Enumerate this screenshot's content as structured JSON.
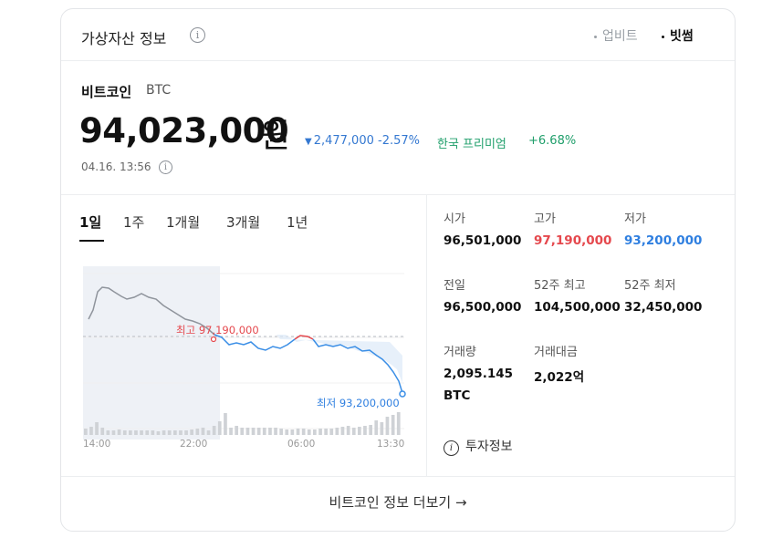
{
  "header": {
    "title": "가상자산 정보",
    "info_icon": "info-icon",
    "sources": [
      "업비트",
      "빗썸"
    ]
  },
  "coin": {
    "name": "비트코인",
    "symbol": "BTC",
    "price": "94,023,000",
    "unit": "원",
    "change": "2,477,000 -2.57%",
    "premium_label": "한국 프리미엄",
    "premium_value": "+6.68%",
    "timestamp": "04.16. 13:56"
  },
  "tabs": [
    "1일",
    "1주",
    "1개월",
    "3개월",
    "1년"
  ],
  "chart": {
    "high_label": "최고 97,190,000",
    "low_label": "최저 93,200,000",
    "x_ticks": [
      "14:00",
      "22:00",
      "06:00",
      "13:30"
    ]
  },
  "chart_data": {
    "type": "line",
    "x": [
      "14:00",
      "22:00",
      "06:00",
      "13:30"
    ],
    "high": 97190000,
    "low": 93200000,
    "close": 94023000,
    "annotations": [
      "최고 97,190,000",
      "최저 93,200,000"
    ]
  },
  "stats": {
    "open": {
      "label": "시가",
      "value": "96,501,000"
    },
    "high": {
      "label": "고가",
      "value": "97,190,000"
    },
    "low": {
      "label": "저가",
      "value": "93,200,000"
    },
    "prev": {
      "label": "전일",
      "value": "96,500,000"
    },
    "high52": {
      "label": "52주 최고",
      "value": "104,500,000"
    },
    "low52": {
      "label": "52주 최저",
      "value": "32,450,000"
    },
    "volume": {
      "label": "거래량",
      "value": "2,095.145",
      "unit": "BTC"
    },
    "amount": {
      "label": "거래대금",
      "value": "2,022억"
    }
  },
  "invest_link": "투자정보",
  "more_link": "비트코인 정보 더보기",
  "colors": {
    "up": "#e5484d",
    "down": "#2f7fe0",
    "premium": "#1e9e6a"
  }
}
